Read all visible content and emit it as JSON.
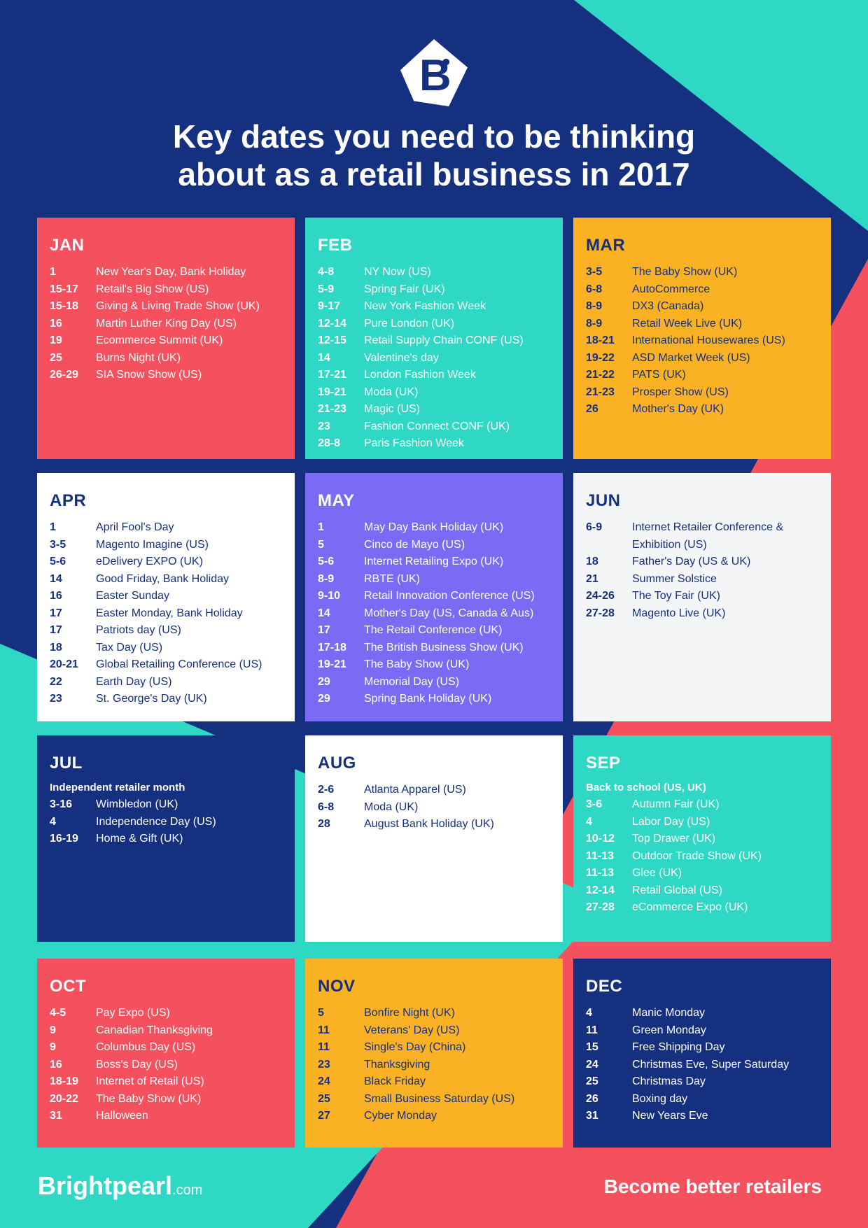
{
  "title": {
    "line1": "Key dates you need to be thinking",
    "line2": "about as a retail business in 2017"
  },
  "colors": {
    "navy": "#14307f",
    "teal": "#2fd8c5",
    "red": "#f5505e",
    "yellow": "#fbb124",
    "purple": "#7b6af4",
    "white": "#ffffff",
    "light": "#f4f5f7"
  },
  "months": [
    {
      "label": "JAN",
      "events": [
        {
          "d": "1",
          "n": "New Year's Day, Bank Holiday"
        },
        {
          "d": "15-17",
          "n": "Retail's Big Show (US)"
        },
        {
          "d": "15-18",
          "n": "Giving & Living Trade Show (UK)"
        },
        {
          "d": "16",
          "n": "Martin Luther King Day (US)"
        },
        {
          "d": "19",
          "n": "Ecommerce Summit (UK)"
        },
        {
          "d": "25",
          "n": "Burns Night (UK)"
        },
        {
          "d": "26-29",
          "n": "SIA Snow Show (US)"
        }
      ]
    },
    {
      "label": "FEB",
      "events": [
        {
          "d": "4-8",
          "n": "NY Now (US)"
        },
        {
          "d": "5-9",
          "n": "Spring Fair (UK)"
        },
        {
          "d": "9-17",
          "n": "New York Fashion Week"
        },
        {
          "d": "12-14",
          "n": "Pure London (UK)"
        },
        {
          "d": "12-15",
          "n": "Retail Supply Chain CONF (US)"
        },
        {
          "d": "14",
          "n": "Valentine's day"
        },
        {
          "d": "17-21",
          "n": "London Fashion Week"
        },
        {
          "d": "19-21",
          "n": "Moda (UK)"
        },
        {
          "d": "21-23",
          "n": "Magic (US)"
        },
        {
          "d": "23",
          "n": "Fashion Connect CONF (UK)"
        },
        {
          "d": "28-8",
          "n": "Paris Fashion Week"
        }
      ]
    },
    {
      "label": "MAR",
      "events": [
        {
          "d": "3-5",
          "n": "The Baby Show (UK)"
        },
        {
          "d": "6-8",
          "n": "AutoCommerce"
        },
        {
          "d": "8-9",
          "n": "DX3 (Canada)"
        },
        {
          "d": "8-9",
          "n": "Retail Week Live (UK)"
        },
        {
          "d": "18-21",
          "n": "International Housewares (US)"
        },
        {
          "d": "19-22",
          "n": "ASD Market Week (US)"
        },
        {
          "d": "21-22",
          "n": "PATS (UK)"
        },
        {
          "d": "21-23",
          "n": "Prosper Show (US)"
        },
        {
          "d": "26",
          "n": "Mother's Day (UK)"
        }
      ]
    },
    {
      "label": "APR",
      "events": [
        {
          "d": "1",
          "n": "April Fool's Day"
        },
        {
          "d": "3-5",
          "n": "Magento Imagine (US)"
        },
        {
          "d": "5-6",
          "n": "eDelivery EXPO (UK)"
        },
        {
          "d": "14",
          "n": "Good Friday, Bank Holiday"
        },
        {
          "d": "16",
          "n": "Easter Sunday"
        },
        {
          "d": "17",
          "n": "Easter Monday, Bank Holiday"
        },
        {
          "d": "17",
          "n": "Patriots day (US)"
        },
        {
          "d": "18",
          "n": "Tax Day (US)"
        },
        {
          "d": "20-21",
          "n": "Global Retailing Conference (US)"
        },
        {
          "d": "22",
          "n": "Earth Day (US)"
        },
        {
          "d": "23",
          "n": "St. George's Day (UK)"
        }
      ]
    },
    {
      "label": "MAY",
      "events": [
        {
          "d": "1",
          "n": "May Day Bank Holiday (UK)"
        },
        {
          "d": "5",
          "n": "Cinco de Mayo (US)"
        },
        {
          "d": "5-6",
          "n": "Internet Retailing Expo (UK)"
        },
        {
          "d": "8-9",
          "n": "RBTE (UK)"
        },
        {
          "d": "9-10",
          "n": "Retail Innovation Conference (US)"
        },
        {
          "d": "14",
          "n": "Mother's Day (US, Canada & Aus)"
        },
        {
          "d": "17",
          "n": "The Retail Conference (UK)"
        },
        {
          "d": "17-18",
          "n": "The British Business Show (UK)"
        },
        {
          "d": "19-21",
          "n": "The Baby Show (UK)"
        },
        {
          "d": "29",
          "n": "Memorial Day (US)"
        },
        {
          "d": "29",
          "n": "Spring Bank Holiday (UK)"
        }
      ]
    },
    {
      "label": "JUN",
      "events": [
        {
          "d": "6-9",
          "n": "Internet Retailer Conference & Exhibition (US)"
        },
        {
          "d": "18",
          "n": "Father's Day (US & UK)"
        },
        {
          "d": "21",
          "n": "Summer Solstice"
        },
        {
          "d": "24-26",
          "n": "The Toy Fair (UK)"
        },
        {
          "d": "27-28",
          "n": "Magento Live (UK)"
        }
      ]
    },
    {
      "label": "JUL",
      "note": "Independent retailer month",
      "events": [
        {
          "d": "3-16",
          "n": "Wimbledon (UK)"
        },
        {
          "d": "4",
          "n": "Independence Day (US)"
        },
        {
          "d": "16-19",
          "n": "Home & Gift (UK)"
        }
      ]
    },
    {
      "label": "AUG",
      "events": [
        {
          "d": "2-6",
          "n": "Atlanta Apparel (US)"
        },
        {
          "d": "6-8",
          "n": "Moda (UK)"
        },
        {
          "d": "28",
          "n": "August Bank Holiday (UK)"
        }
      ]
    },
    {
      "label": "SEP",
      "note": "Back to school (US, UK)",
      "events": [
        {
          "d": "3-6",
          "n": "Autumn Fair (UK)"
        },
        {
          "d": "4",
          "n": "Labor Day (US)"
        },
        {
          "d": "10-12",
          "n": "Top Drawer (UK)"
        },
        {
          "d": "11-13",
          "n": "Outdoor Trade Show (UK)"
        },
        {
          "d": "11-13",
          "n": "Glee (UK)"
        },
        {
          "d": "12-14",
          "n": "Retail Global (US)"
        },
        {
          "d": "27-28",
          "n": "eCommerce Expo (UK)"
        }
      ]
    },
    {
      "label": "OCT",
      "events": [
        {
          "d": "4-5",
          "n": "Pay Expo (US)"
        },
        {
          "d": "9",
          "n": "Canadian Thanksgiving"
        },
        {
          "d": "9",
          "n": "Columbus Day (US)"
        },
        {
          "d": "16",
          "n": "Boss's Day (US)"
        },
        {
          "d": "18-19",
          "n": "Internet of Retail (US)"
        },
        {
          "d": "20-22",
          "n": "The Baby Show (UK)"
        },
        {
          "d": "31",
          "n": "Halloween"
        }
      ]
    },
    {
      "label": "NOV",
      "events": [
        {
          "d": "5",
          "n": "Bonfire Night (UK)"
        },
        {
          "d": "11",
          "n": "Veterans' Day (US)"
        },
        {
          "d": "11",
          "n": "Single's Day (China)"
        },
        {
          "d": "23",
          "n": "Thanksgiving"
        },
        {
          "d": "24",
          "n": "Black Friday"
        },
        {
          "d": "25",
          "n": "Small Business Saturday (US)"
        },
        {
          "d": "27",
          "n": "Cyber Monday"
        }
      ]
    },
    {
      "label": "DEC",
      "events": [
        {
          "d": "4",
          "n": "Manic Monday"
        },
        {
          "d": "11",
          "n": "Green Monday"
        },
        {
          "d": "15",
          "n": "Free Shipping Day"
        },
        {
          "d": "24",
          "n": "Christmas Eve, Super Saturday"
        },
        {
          "d": "25",
          "n": "Christmas Day"
        },
        {
          "d": "26",
          "n": "Boxing day"
        },
        {
          "d": "31",
          "n": "New Years Eve"
        }
      ]
    }
  ],
  "footer": {
    "brand": "Brightpearl",
    "brand_suffix": ".com",
    "tagline": "Become better retailers"
  }
}
